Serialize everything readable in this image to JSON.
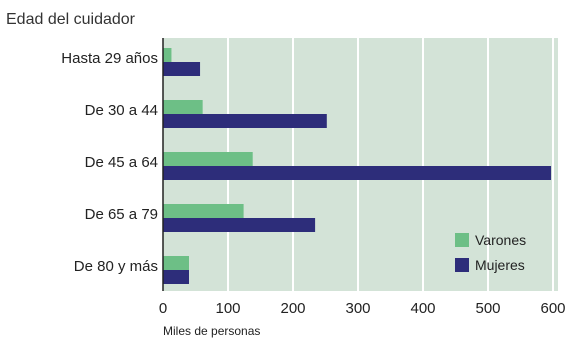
{
  "chart_data": {
    "type": "bar",
    "orientation": "horizontal",
    "title": "Edad del cuidador",
    "xlabel": "Miles de personas",
    "ylabel": "",
    "xlim": [
      0,
      600
    ],
    "xticks": [
      0,
      100,
      200,
      300,
      400,
      500,
      600
    ],
    "categories": [
      "Hasta 29 años",
      "De 30 a 44",
      "De 45 a 64",
      "De 65 a 79",
      "De 80 y más"
    ],
    "series": [
      {
        "name": "Varones",
        "color": "#6dbf86",
        "values": [
          13,
          61,
          138,
          124,
          40
        ]
      },
      {
        "name": "Mujeres",
        "color": "#2d2d7a",
        "values": [
          57,
          252,
          597,
          234,
          40
        ]
      }
    ],
    "plot_background": "#d3e3d7",
    "grid": true,
    "legend_position": "bottom-right"
  }
}
